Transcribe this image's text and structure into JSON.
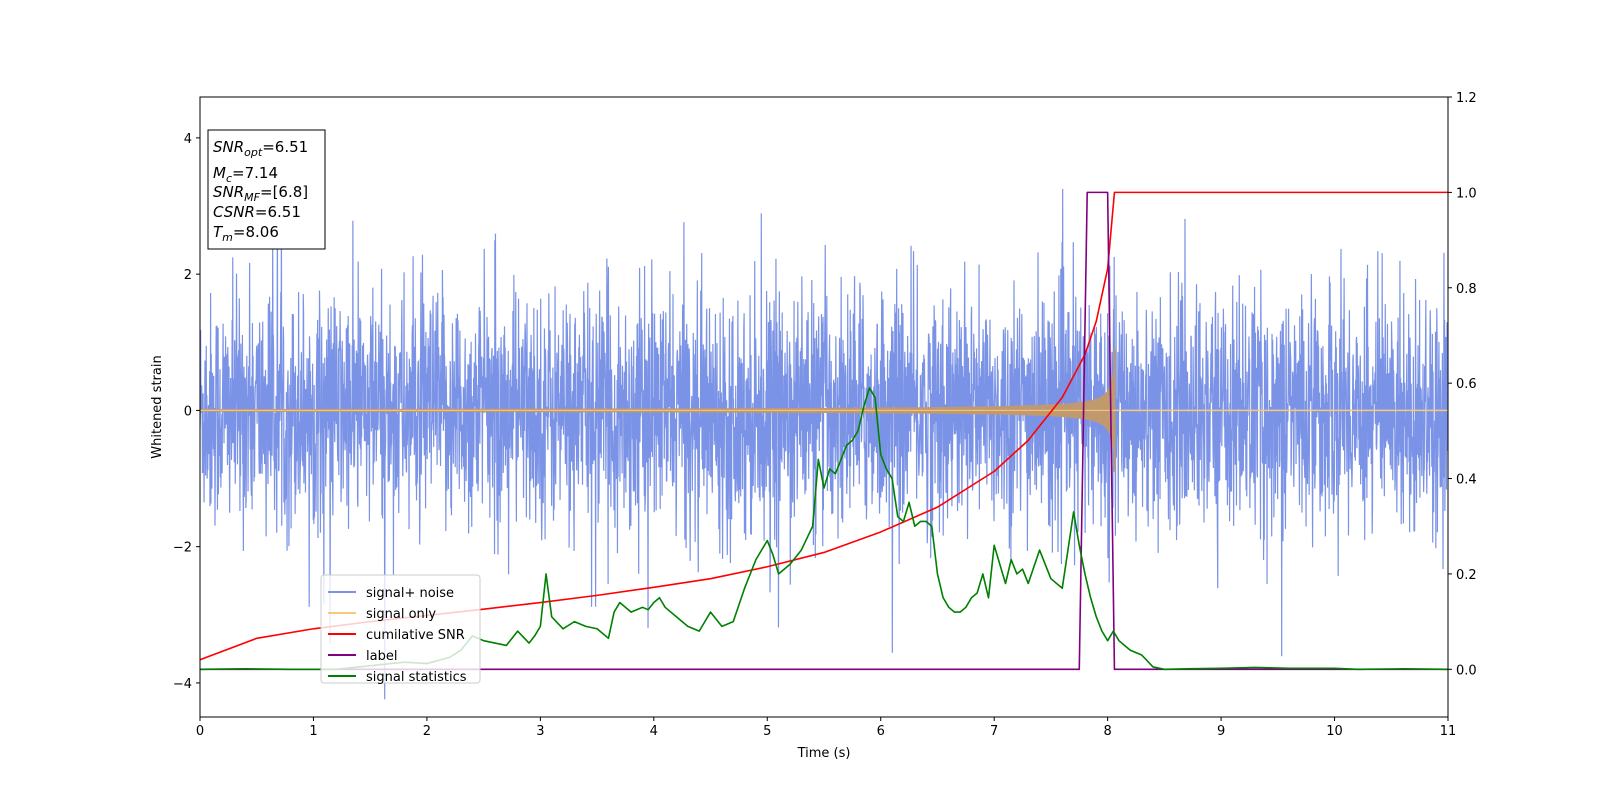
{
  "chart_data": {
    "type": "line",
    "xlabel": "Time (s)",
    "ylabel": "Whitened strain",
    "xlim": [
      0,
      11
    ],
    "ylim_left": [
      -4.5,
      4.6
    ],
    "ylim_right": [
      -0.1,
      1.2
    ],
    "x_ticks": [
      0,
      1,
      2,
      3,
      4,
      5,
      6,
      7,
      8,
      9,
      10,
      11
    ],
    "y_ticks_left": [
      -4,
      -2,
      0,
      2,
      4
    ],
    "y_ticks_right": [
      0.0,
      0.2,
      0.4,
      0.6,
      0.8,
      1.0,
      1.2
    ],
    "y_tick_labels_left": [
      "−4",
      "−2",
      "0",
      "2",
      "4"
    ],
    "y_tick_labels_right": [
      "0.0",
      "0.2",
      "0.4",
      "0.6",
      "0.8",
      "1.0",
      "1.2"
    ],
    "legend_position": "lower-left",
    "info_box": {
      "lines": [
        {
          "symbol": "SNR",
          "sub": "opt",
          "value": "=6.51"
        },
        {
          "symbol": "M",
          "sub": "c",
          "value": "=7.14"
        },
        {
          "symbol": "SNR",
          "sub": "MF",
          "value": "=[6.8]"
        },
        {
          "symbol": "CSNR",
          "sub": "",
          "value": "=6.51"
        },
        {
          "symbol": "T",
          "sub": "m",
          "value": "=8.06"
        }
      ]
    },
    "series": [
      {
        "name": "signal+ noise",
        "axis": "left",
        "color": "#7b93e6",
        "description_values": {
          "noise_std": 0.85,
          "x_range": [
            0,
            11
          ]
        }
      },
      {
        "name": "signal only",
        "axis": "left",
        "color": "#f9c97a",
        "fill_color": "#c09a6e",
        "chirp": {
          "start_amplitude": 0.02,
          "end_amplitude": 0.85,
          "merger_time": 8.06
        }
      },
      {
        "name": "cumilative SNR",
        "axis": "right",
        "color": "#ff0000",
        "x": [
          0,
          0.5,
          1,
          1.5,
          2,
          2.5,
          3,
          3.5,
          4,
          4.5,
          5,
          5.5,
          6,
          6.5,
          7,
          7.3,
          7.6,
          7.8,
          7.9,
          8.0,
          8.06,
          8.5,
          9,
          10,
          11
        ],
        "y": [
          0.02,
          0.065,
          0.085,
          0.1,
          0.113,
          0.126,
          0.14,
          0.155,
          0.172,
          0.19,
          0.215,
          0.245,
          0.288,
          0.34,
          0.415,
          0.48,
          0.57,
          0.66,
          0.73,
          0.84,
          1.0,
          1.0,
          1.0,
          1.0,
          1.0
        ]
      },
      {
        "name": "label",
        "axis": "right",
        "color": "#800080",
        "x": [
          0,
          7.75,
          7.82,
          8.0,
          8.06,
          11
        ],
        "y": [
          0.0,
          0.0,
          1.0,
          1.0,
          0.0,
          0.0
        ]
      },
      {
        "name": "signal statistics",
        "axis": "right",
        "color": "#008000",
        "x": [
          0,
          0.4,
          0.8,
          1.2,
          1.6,
          1.8,
          2.0,
          2.2,
          2.3,
          2.4,
          2.5,
          2.6,
          2.7,
          2.8,
          2.9,
          2.95,
          3.0,
          3.05,
          3.1,
          3.2,
          3.3,
          3.4,
          3.5,
          3.6,
          3.65,
          3.7,
          3.8,
          3.9,
          3.95,
          4.0,
          4.05,
          4.1,
          4.2,
          4.3,
          4.4,
          4.5,
          4.6,
          4.7,
          4.8,
          4.9,
          5.0,
          5.05,
          5.1,
          5.2,
          5.3,
          5.4,
          5.45,
          5.5,
          5.55,
          5.6,
          5.65,
          5.7,
          5.75,
          5.8,
          5.85,
          5.9,
          5.95,
          6.0,
          6.05,
          6.1,
          6.15,
          6.2,
          6.25,
          6.3,
          6.35,
          6.4,
          6.45,
          6.5,
          6.55,
          6.6,
          6.65,
          6.7,
          6.75,
          6.8,
          6.85,
          6.9,
          6.95,
          7.0,
          7.1,
          7.15,
          7.2,
          7.25,
          7.3,
          7.4,
          7.5,
          7.6,
          7.65,
          7.7,
          7.75,
          7.8,
          7.85,
          7.9,
          7.95,
          8.0,
          8.05,
          8.1,
          8.15,
          8.2,
          8.3,
          8.4,
          8.5,
          8.7,
          9.0,
          9.3,
          9.6,
          10.0,
          10.2,
          10.6,
          11.0
        ],
        "y": [
          0.0,
          0.001,
          0.0,
          0.0,
          0.01,
          0.015,
          0.012,
          0.025,
          0.04,
          0.07,
          0.06,
          0.055,
          0.05,
          0.08,
          0.055,
          0.07,
          0.09,
          0.2,
          0.11,
          0.085,
          0.1,
          0.09,
          0.085,
          0.065,
          0.12,
          0.14,
          0.12,
          0.13,
          0.125,
          0.14,
          0.15,
          0.13,
          0.11,
          0.09,
          0.08,
          0.12,
          0.09,
          0.1,
          0.17,
          0.23,
          0.27,
          0.24,
          0.2,
          0.22,
          0.25,
          0.3,
          0.44,
          0.38,
          0.42,
          0.41,
          0.44,
          0.47,
          0.48,
          0.5,
          0.55,
          0.59,
          0.57,
          0.45,
          0.42,
          0.4,
          0.32,
          0.31,
          0.35,
          0.3,
          0.31,
          0.31,
          0.3,
          0.2,
          0.15,
          0.13,
          0.12,
          0.12,
          0.13,
          0.15,
          0.16,
          0.2,
          0.15,
          0.26,
          0.18,
          0.23,
          0.2,
          0.21,
          0.18,
          0.25,
          0.19,
          0.17,
          0.25,
          0.33,
          0.26,
          0.2,
          0.15,
          0.11,
          0.08,
          0.06,
          0.08,
          0.06,
          0.05,
          0.04,
          0.03,
          0.005,
          0.0,
          0.001,
          0.002,
          0.004,
          0.002,
          0.002,
          0.0,
          0.001,
          0.0
        ]
      }
    ]
  }
}
